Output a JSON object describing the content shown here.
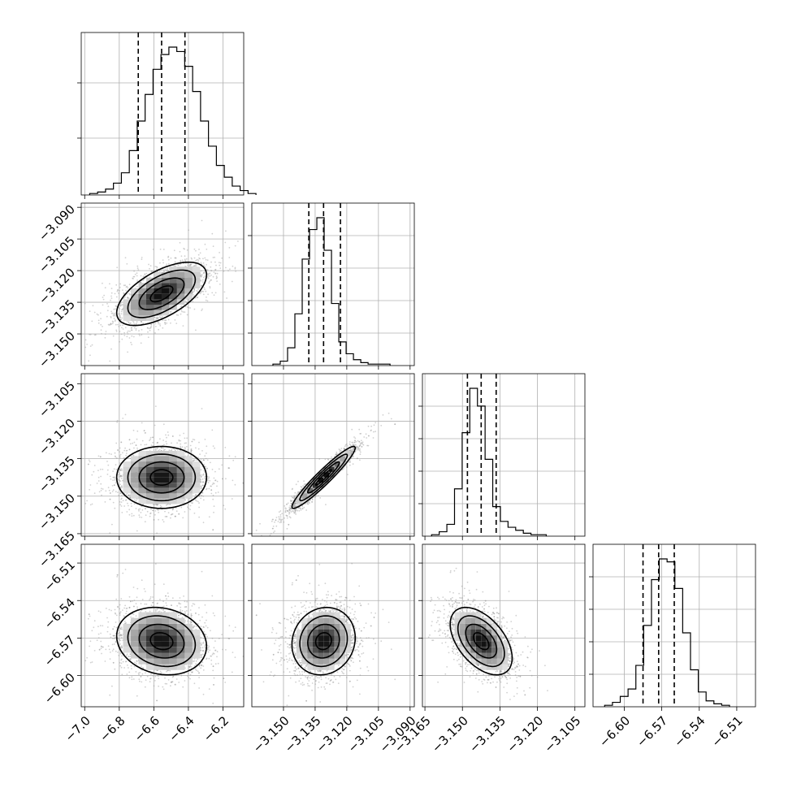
{
  "chart_data": {
    "type": "corner",
    "parameters": [
      {
        "index": 0,
        "range": [
          -7.02,
          -6.08
        ],
        "ticks": [
          -7.0,
          -6.8,
          -6.6,
          -6.4,
          -6.2
        ],
        "tick_labels": [
          "−7.0",
          "−6.8",
          "−6.6",
          "−6.4",
          "−6.2"
        ],
        "mean": -6.555,
        "sd": 0.13,
        "quantiles": [
          -6.69,
          -6.555,
          -6.42
        ]
      },
      {
        "index": 1,
        "range": [
          -3.165,
          -3.088
        ],
        "ticks": [
          -3.15,
          -3.135,
          -3.12,
          -3.105,
          -3.09
        ],
        "tick_labels": [
          "−3.150",
          "−3.135",
          "−3.120",
          "−3.105",
          "−3.090"
        ],
        "mean": -3.131,
        "sd": 0.0075,
        "quantiles": [
          -3.138,
          -3.131,
          -3.123
        ]
      },
      {
        "index": 2,
        "range": [
          -3.166,
          -3.101
        ],
        "ticks": [
          -3.165,
          -3.15,
          -3.135,
          -3.12,
          -3.105
        ],
        "tick_labels": [
          "−3.165",
          "−3.150",
          "−3.135",
          "−3.120",
          "−3.105"
        ],
        "mean": -3.1425,
        "sd": 0.0062,
        "quantiles": [
          -3.148,
          -3.1425,
          -3.1365
        ]
      },
      {
        "index": 3,
        "range": [
          -6.625,
          -6.495
        ],
        "ticks": [
          -6.6,
          -6.57,
          -6.54,
          -6.51
        ],
        "tick_labels": [
          "−6.60",
          "−6.57",
          "−6.54",
          "−6.51"
        ],
        "mean": -6.5725,
        "sd": 0.0135,
        "quantiles": [
          -6.585,
          -6.5725,
          -6.56
        ]
      }
    ],
    "diagonal_hist": [
      {
        "parameter": 0,
        "counts": [
          1,
          2,
          4,
          8,
          15,
          30,
          50,
          68,
          85,
          95,
          100,
          97,
          87,
          70,
          50,
          33,
          20,
          12,
          6,
          3,
          1
        ]
      },
      {
        "parameter": 1,
        "counts": [
          1,
          3,
          12,
          35,
          72,
          92,
          100,
          78,
          42,
          16,
          8,
          4,
          2,
          1,
          1,
          1
        ]
      },
      {
        "parameter": 2,
        "counts": [
          1,
          3,
          8,
          32,
          70,
          100,
          88,
          52,
          20,
          10,
          6,
          4,
          2,
          1,
          1
        ]
      },
      {
        "parameter": 3,
        "counts": [
          1,
          3,
          7,
          12,
          28,
          55,
          86,
          100,
          98,
          80,
          50,
          25,
          10,
          4,
          2,
          1
        ]
      }
    ],
    "pair_correlations": [
      {
        "x": 0,
        "y": 1,
        "rho": 0.6
      },
      {
        "x": 0,
        "y": 2,
        "rho": 0.0
      },
      {
        "x": 1,
        "y": 2,
        "rho": 0.95
      },
      {
        "x": 0,
        "y": 3,
        "rho": -0.15
      },
      {
        "x": 1,
        "y": 3,
        "rho": 0.1
      },
      {
        "x": 2,
        "y": 3,
        "rho": -0.5
      }
    ],
    "contour_levels_sigma": [
      0.5,
      1.0,
      1.5,
      2.0
    ],
    "grid": true,
    "legend": "none"
  }
}
